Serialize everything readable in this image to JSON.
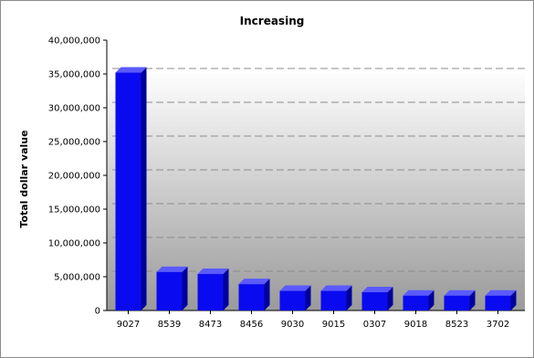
{
  "chart_data": {
    "type": "bar",
    "title": "Increasing",
    "xlabel": "",
    "ylabel": "Total dollar value",
    "categories": [
      "9027",
      "8539",
      "8473",
      "8456",
      "9030",
      "9015",
      "0307",
      "9018",
      "8523",
      "3702"
    ],
    "values": [
      35200000,
      5700000,
      5400000,
      3900000,
      2900000,
      2900000,
      2700000,
      2200000,
      2200000,
      2200000
    ],
    "ylim": [
      0,
      40000000
    ],
    "yticks": [
      0,
      5000000,
      10000000,
      15000000,
      20000000,
      25000000,
      30000000,
      35000000,
      40000000
    ],
    "ytick_labels": [
      "0",
      "5,000,000",
      "10,000,000",
      "15,000,000",
      "20,000,000",
      "25,000,000",
      "30,000,000",
      "35,000,000",
      "40,000,000"
    ],
    "grid": true,
    "legend": "none",
    "colors": {
      "bar_front": "#0a0af0",
      "bar_top": "#5a5aff",
      "bar_side": "#00009a",
      "gridline": "#8c8c8c",
      "plot_bg_top": "#ffffff",
      "plot_bg_bottom": "#9a9a9a"
    }
  }
}
